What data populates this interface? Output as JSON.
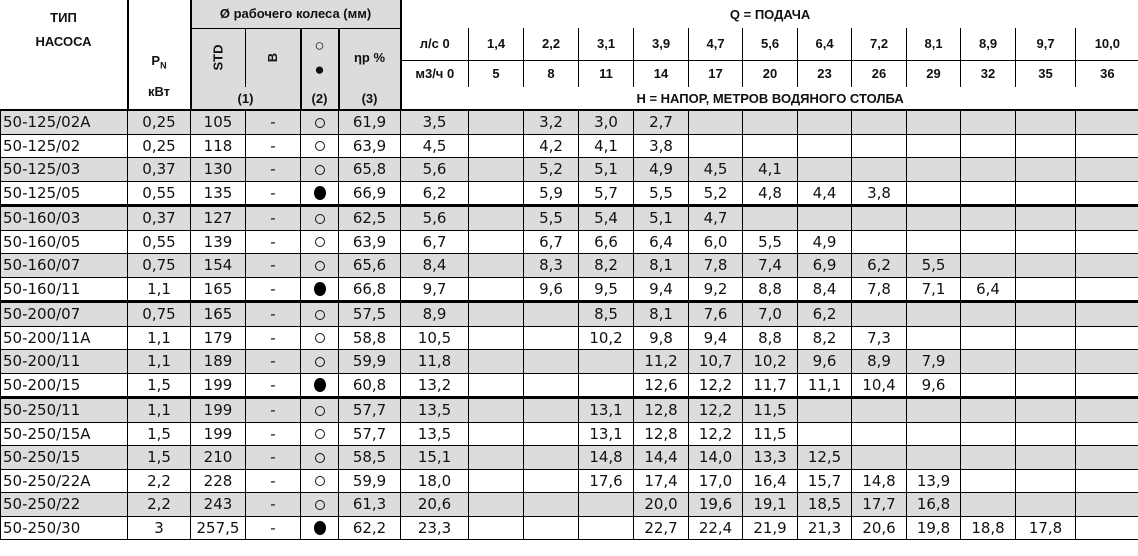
{
  "header": {
    "type_line1": "ТИП",
    "type_line2": "НАСОСА",
    "power_symbol": "P",
    "power_sub": "N",
    "power_unit": "кВт",
    "impeller_title": "Ø рабочего колеса (мм)",
    "std": "STD",
    "b": "B",
    "circle_open": "○",
    "circle_filled": "●",
    "efficiency": "ηр %",
    "note1": "(1)",
    "note2": "(2)",
    "note3": "(3)",
    "q_title": "Q  = ПОДАЧА",
    "h_title": "H  = НАПОР, МЕТРОВ ВОДЯНОГО СТОЛБА",
    "flow_ls": [
      "л/с 0",
      "1,4",
      "2,2",
      "3,1",
      "3,9",
      "4,7",
      "5,6",
      "6,4",
      "7,2",
      "8,1",
      "8,9",
      "9,7",
      "10,0"
    ],
    "flow_m3h": [
      "м3/ч 0",
      "5",
      "8",
      "11",
      "14",
      "17",
      "20",
      "23",
      "26",
      "29",
      "32",
      "35",
      "36"
    ]
  },
  "rows": [
    {
      "type": "50-125/02A",
      "pn": "0,25",
      "std": "105",
      "b": "-",
      "mark": "open",
      "eff": "61,9",
      "h": [
        "3,5",
        "",
        "3,2",
        "3,0",
        "2,7",
        "",
        "",
        "",
        "",
        "",
        "",
        "",
        ""
      ]
    },
    {
      "type": "50-125/02",
      "pn": "0,25",
      "std": "118",
      "b": "-",
      "mark": "open",
      "eff": "63,9",
      "h": [
        "4,5",
        "",
        "4,2",
        "4,1",
        "3,8",
        "",
        "",
        "",
        "",
        "",
        "",
        "",
        ""
      ]
    },
    {
      "type": "50-125/03",
      "pn": "0,37",
      "std": "130",
      "b": "-",
      "mark": "open",
      "eff": "65,8",
      "h": [
        "5,6",
        "",
        "5,2",
        "5,1",
        "4,9",
        "4,5",
        "4,1",
        "",
        "",
        "",
        "",
        "",
        ""
      ]
    },
    {
      "type": "50-125/05",
      "pn": "0,55",
      "std": "135",
      "b": "-",
      "mark": "filled",
      "eff": "66,9",
      "h": [
        "6,2",
        "",
        "5,9",
        "5,7",
        "5,5",
        "5,2",
        "4,8",
        "4,4",
        "3,8",
        "",
        "",
        "",
        ""
      ]
    },
    {
      "type": "50-160/03",
      "pn": "0,37",
      "std": "127",
      "b": "-",
      "mark": "open",
      "eff": "62,5",
      "h": [
        "5,6",
        "",
        "5,5",
        "5,4",
        "5,1",
        "4,7",
        "",
        "",
        "",
        "",
        "",
        "",
        ""
      ]
    },
    {
      "type": "50-160/05",
      "pn": "0,55",
      "std": "139",
      "b": "-",
      "mark": "open",
      "eff": "63,9",
      "h": [
        "6,7",
        "",
        "6,7",
        "6,6",
        "6,4",
        "6,0",
        "5,5",
        "4,9",
        "",
        "",
        "",
        "",
        ""
      ]
    },
    {
      "type": "50-160/07",
      "pn": "0,75",
      "std": "154",
      "b": "-",
      "mark": "open",
      "eff": "65,6",
      "h": [
        "8,4",
        "",
        "8,3",
        "8,2",
        "8,1",
        "7,8",
        "7,4",
        "6,9",
        "6,2",
        "5,5",
        "",
        "",
        ""
      ]
    },
    {
      "type": "50-160/11",
      "pn": "1,1",
      "std": "165",
      "b": "-",
      "mark": "filled",
      "eff": "66,8",
      "h": [
        "9,7",
        "",
        "9,6",
        "9,5",
        "9,4",
        "9,2",
        "8,8",
        "8,4",
        "7,8",
        "7,1",
        "6,4",
        "",
        ""
      ]
    },
    {
      "type": "50-200/07",
      "pn": "0,75",
      "std": "165",
      "b": "-",
      "mark": "open",
      "eff": "57,5",
      "h": [
        "8,9",
        "",
        "",
        "8,5",
        "8,1",
        "7,6",
        "7,0",
        "6,2",
        "",
        "",
        "",
        "",
        ""
      ]
    },
    {
      "type": "50-200/11A",
      "pn": "1,1",
      "std": "179",
      "b": "-",
      "mark": "open",
      "eff": "58,8",
      "h": [
        "10,5",
        "",
        "",
        "10,2",
        "9,8",
        "9,4",
        "8,8",
        "8,2",
        "7,3",
        "",
        "",
        "",
        ""
      ]
    },
    {
      "type": "50-200/11",
      "pn": "1,1",
      "std": "189",
      "b": "-",
      "mark": "open",
      "eff": "59,9",
      "h": [
        "11,8",
        "",
        "",
        "",
        "11,2",
        "10,7",
        "10,2",
        "9,6",
        "8,9",
        "7,9",
        "",
        "",
        ""
      ]
    },
    {
      "type": "50-200/15",
      "pn": "1,5",
      "std": "199",
      "b": "-",
      "mark": "filled",
      "eff": "60,8",
      "h": [
        "13,2",
        "",
        "",
        "",
        "12,6",
        "12,2",
        "11,7",
        "11,1",
        "10,4",
        "9,6",
        "",
        "",
        ""
      ]
    },
    {
      "type": "50-250/11",
      "pn": "1,1",
      "std": "199",
      "b": "-",
      "mark": "open",
      "eff": "57,7",
      "h": [
        "13,5",
        "",
        "",
        "13,1",
        "12,8",
        "12,2",
        "11,5",
        "",
        "",
        "",
        "",
        "",
        ""
      ]
    },
    {
      "type": "50-250/15A",
      "pn": "1,5",
      "std": "199",
      "b": "-",
      "mark": "open",
      "eff": "57,7",
      "h": [
        "13,5",
        "",
        "",
        "13,1",
        "12,8",
        "12,2",
        "11,5",
        "",
        "",
        "",
        "",
        "",
        ""
      ]
    },
    {
      "type": "50-250/15",
      "pn": "1,5",
      "std": "210",
      "b": "-",
      "mark": "open",
      "eff": "58,5",
      "h": [
        "15,1",
        "",
        "",
        "14,8",
        "14,4",
        "14,0",
        "13,3",
        "12,5",
        "",
        "",
        "",
        "",
        ""
      ]
    },
    {
      "type": "50-250/22A",
      "pn": "2,2",
      "std": "228",
      "b": "-",
      "mark": "open",
      "eff": "59,9",
      "h": [
        "18,0",
        "",
        "",
        "17,6",
        "17,4",
        "17,0",
        "16,4",
        "15,7",
        "14,8",
        "13,9",
        "",
        "",
        ""
      ]
    },
    {
      "type": "50-250/22",
      "pn": "2,2",
      "std": "243",
      "b": "-",
      "mark": "open",
      "eff": "61,3",
      "h": [
        "20,6",
        "",
        "",
        "",
        "20,0",
        "19,6",
        "19,1",
        "18,5",
        "17,7",
        "16,8",
        "",
        "",
        ""
      ]
    },
    {
      "type": "50-250/30",
      "pn": "3",
      "std": "257,5",
      "b": "-",
      "mark": "filled",
      "eff": "62,2",
      "h": [
        "23,3",
        "",
        "",
        "",
        "22,7",
        "22,4",
        "21,9",
        "21,3",
        "20,6",
        "19,8",
        "18,8",
        "17,8",
        ""
      ]
    }
  ],
  "group_starts": [
    4,
    8,
    12
  ],
  "colors": {
    "shade": "#dcdcdc",
    "border": "#000000"
  }
}
